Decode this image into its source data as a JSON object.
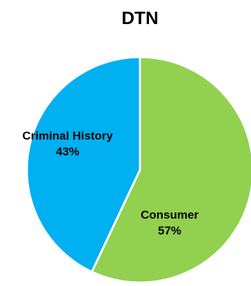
{
  "chart_data": {
    "type": "pie",
    "title": "DTN",
    "slices": [
      {
        "label": "Consumer",
        "value": 57,
        "value_label": "57%",
        "color": "#92D050"
      },
      {
        "label": "Criminal History",
        "value": 43,
        "value_label": "43%",
        "color": "#00B0F0"
      }
    ],
    "start_angle_deg": 0,
    "direction": "clockwise",
    "legend": "none",
    "border_color": "#FFFFFF"
  }
}
